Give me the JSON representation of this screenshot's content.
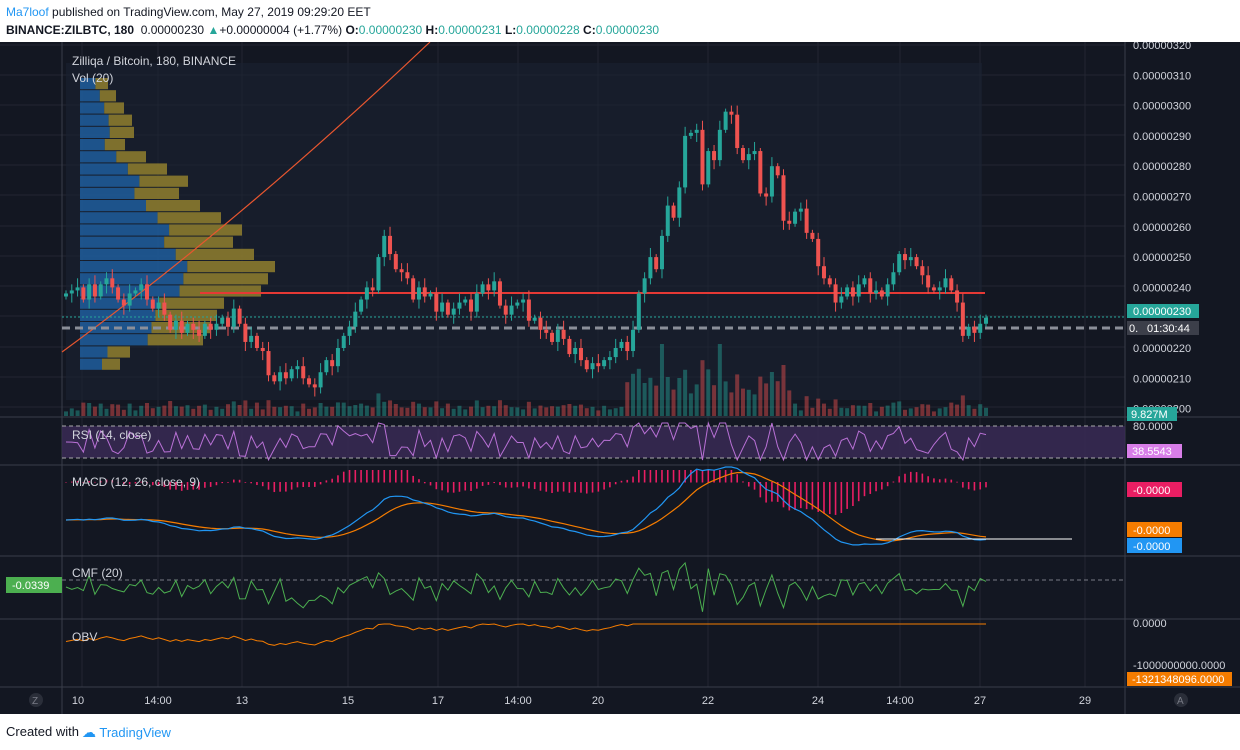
{
  "header": {
    "author": "Ma7loof",
    "published": "published on TradingView.com, May 27, 2019 09:29:20 EET",
    "symbol": "BINANCE:ZILBTC, 180",
    "last": "0.00000230",
    "change_arrow": "▲",
    "change": "+0.00000004 (+1.77%)",
    "o_label": "O:",
    "o_value": "0.00000230",
    "h_label": "H:",
    "h_value": "0.00000231",
    "l_label": "L:",
    "l_value": "0.00000228",
    "c_label": "C:",
    "c_value": "0.00000230"
  },
  "main": {
    "title": "Zilliqa / Bitcoin, 180, BINANCE",
    "vol_label": "Vol (20)",
    "price_tag": "0.00000230",
    "countdown_prefix": "0.",
    "countdown": "01:30:44",
    "vol_tag": "9.827M"
  },
  "rsi": {
    "label": "RSI (14, close)",
    "tag": "38.5543",
    "level": "80.0000"
  },
  "macd": {
    "label": "MACD (12, 26, close, 9)",
    "hist_tag": "-0.0000",
    "signal_tag": "-0.0000",
    "macd_tag": "-0.0000"
  },
  "cmf": {
    "label": "CMF (20)",
    "tag": "-0.0339"
  },
  "obv": {
    "label": "OBV",
    "tag": "-1321348096.0000",
    "level0": "0.0000",
    "level1": "-1000000000.0000"
  },
  "buttons": {
    "z": "Z",
    "a": "A"
  },
  "footer": {
    "created": "Created with",
    "brand": "TradingView"
  },
  "colors": {
    "up": "#26a69a",
    "down": "#ef5350",
    "bg": "#131722",
    "accent": "#2196f3"
  },
  "chart_data": {
    "type": "candlestick",
    "title": "Zilliqa / Bitcoin, 180, BINANCE",
    "y_range": [
      1.97e-06,
      3.2e-06
    ],
    "price_ticks": [
      "0.00000320",
      "0.00000310",
      "0.00000300",
      "0.00000290",
      "0.00000280",
      "0.00000270",
      "0.00000260",
      "0.00000250",
      "0.00000240",
      "0.00000220",
      "0.00000210",
      "0.00000200"
    ],
    "x_ticks": [
      "10",
      "14:00",
      "13",
      "15",
      "17",
      "14:00",
      "20",
      "22",
      "24",
      "14:00",
      "27",
      "29"
    ],
    "closes": [
      238,
      239,
      240,
      236,
      241,
      237,
      241,
      243,
      240,
      236,
      234,
      238,
      239,
      241,
      236,
      233,
      235,
      231,
      226,
      229,
      225,
      228,
      226,
      224,
      228,
      226,
      228,
      230,
      227,
      233,
      228,
      222,
      224,
      220,
      219,
      211,
      209,
      212,
      210,
      213,
      214,
      210,
      208,
      207,
      212,
      216,
      214,
      220,
      224,
      227,
      232,
      236,
      240,
      239,
      250,
      257,
      251,
      246,
      245,
      243,
      236,
      240,
      237,
      238,
      232,
      235,
      231,
      233,
      235,
      236,
      232,
      238,
      241,
      239,
      242,
      234,
      231,
      234,
      235,
      236,
      229,
      230,
      226,
      225,
      222,
      226,
      223,
      218,
      220,
      216,
      213,
      215,
      214,
      216,
      217,
      220,
      222,
      219,
      226,
      238,
      243,
      250,
      246,
      257,
      267,
      263,
      273,
      290,
      291,
      292,
      274,
      285,
      282,
      292,
      298,
      297,
      286,
      282,
      284,
      285,
      271,
      270,
      280,
      277,
      262,
      261,
      265,
      266,
      258,
      256,
      247,
      243,
      241,
      235,
      237,
      240,
      237,
      241,
      243,
      238,
      239,
      237,
      241,
      245,
      251,
      249,
      250,
      247,
      244,
      240,
      239,
      240,
      243,
      239,
      235,
      224,
      227,
      225,
      228,
      230
    ],
    "volume_profile": {
      "bins": 24,
      "poc_price": 2.37e-06
    },
    "resistance_line": 2.37e-06,
    "support_line": 2.27e-06
  }
}
